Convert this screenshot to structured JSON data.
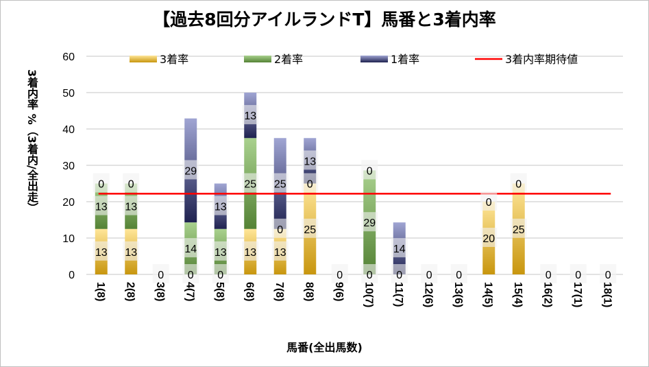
{
  "chart_data": {
    "type": "bar",
    "stacked": true,
    "title": "【過去8回分アイルランドT】馬番と3着内率",
    "xlabel": "馬番(全出馬数)",
    "ylabel": "3着内率 %（3着内/全出走）",
    "ylim": [
      0,
      60
    ],
    "yticks": [
      0,
      10,
      20,
      30,
      40,
      50,
      60
    ],
    "grid": true,
    "legend_position": "top",
    "categories": [
      "1(8)",
      "2(8)",
      "3(8)",
      "4(7)",
      "5(8)",
      "6(8)",
      "7(8)",
      "8(8)",
      "9(6)",
      "10(7)",
      "11(7)",
      "12(6)",
      "13(6)",
      "14(5)",
      "15(4)",
      "16(2)",
      "17(1)",
      "18(1)"
    ],
    "series": [
      {
        "name": "3着率",
        "color": "#c8960e",
        "values": [
          12.5,
          12.5,
          0,
          0,
          0,
          12.5,
          12.5,
          25,
          0,
          0,
          0,
          0,
          0,
          20,
          25,
          0,
          0,
          0
        ],
        "labels": [
          "13",
          "13",
          "0",
          "0",
          "0",
          "13",
          "13",
          "25",
          "0",
          "0",
          "0",
          "0",
          "0",
          "20",
          "25",
          "0",
          "0",
          "0"
        ]
      },
      {
        "name": "2着率",
        "color": "#548235",
        "values": [
          12.5,
          12.5,
          0,
          14.3,
          12.5,
          25,
          0,
          0,
          0,
          28.6,
          0,
          0,
          0,
          0,
          0,
          0,
          0,
          0
        ],
        "labels": [
          "13",
          "13",
          "",
          "14",
          "13",
          "25",
          "0",
          "0",
          "",
          "29",
          "",
          "",
          "",
          "0",
          "0",
          "",
          "",
          ""
        ]
      },
      {
        "name": "1着率",
        "color": "#2f3582",
        "values": [
          0,
          0,
          0,
          28.6,
          12.5,
          12.5,
          25,
          12.5,
          0,
          0,
          14.3,
          0,
          0,
          0,
          0,
          0,
          0,
          0
        ],
        "labels": [
          "0",
          "0",
          "",
          "29",
          "13",
          "13",
          "25",
          "13",
          "",
          "0",
          "14",
          "",
          "",
          "",
          "",
          "",
          "",
          ""
        ]
      }
    ],
    "reference_line": {
      "name": "3着内率期待値",
      "value": 22.2,
      "color": "#ff0000"
    }
  }
}
